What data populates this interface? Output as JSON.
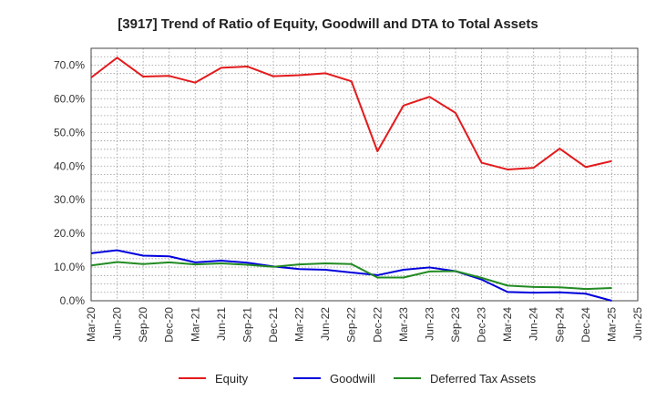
{
  "chart_data": {
    "type": "line",
    "title": "[3917]  Trend of Ratio of Equity, Goodwill and DTA to Total Assets",
    "xlabel": "",
    "ylabel": "",
    "ylim": [
      0,
      75
    ],
    "yticks": [
      0,
      10,
      20,
      30,
      40,
      50,
      60,
      70
    ],
    "ytick_labels": [
      "0.0%",
      "10.0%",
      "20.0%",
      "30.0%",
      "40.0%",
      "50.0%",
      "60.0%",
      "70.0%"
    ],
    "grid": true,
    "legend_position": "bottom",
    "x": [
      "Mar-20",
      "Jun-20",
      "Sep-20",
      "Dec-20",
      "Mar-21",
      "Jun-21",
      "Sep-21",
      "Dec-21",
      "Mar-22",
      "Jun-22",
      "Sep-22",
      "Dec-22",
      "Mar-23",
      "Jun-23",
      "Sep-23",
      "Dec-23",
      "Mar-24",
      "Jun-24",
      "Sep-24",
      "Dec-24",
      "Mar-25",
      "Jun-25"
    ],
    "series": [
      {
        "name": "Equity",
        "color": "#e31a1c",
        "values": [
          66.3,
          72.2,
          66.6,
          66.8,
          64.8,
          69.2,
          69.6,
          66.7,
          67.0,
          67.6,
          65.2,
          44.4,
          58.0,
          60.6,
          55.8,
          41.0,
          39.0,
          39.5,
          45.2,
          39.7,
          41.5,
          null
        ]
      },
      {
        "name": "Goodwill",
        "color": "#0000dd",
        "values": [
          14.1,
          15.0,
          13.4,
          13.2,
          11.4,
          11.9,
          11.3,
          10.2,
          9.4,
          9.2,
          8.4,
          7.6,
          9.2,
          9.9,
          8.8,
          6.3,
          2.6,
          2.4,
          2.5,
          2.1,
          0.0,
          null
        ]
      },
      {
        "name": "Deferred Tax Assets",
        "color": "#228b22",
        "values": [
          10.5,
          11.5,
          10.9,
          11.4,
          10.8,
          11.1,
          10.7,
          10.1,
          10.8,
          11.1,
          10.9,
          6.9,
          6.9,
          8.7,
          8.8,
          6.8,
          4.5,
          4.1,
          4.0,
          3.5,
          3.8,
          null
        ]
      }
    ]
  }
}
